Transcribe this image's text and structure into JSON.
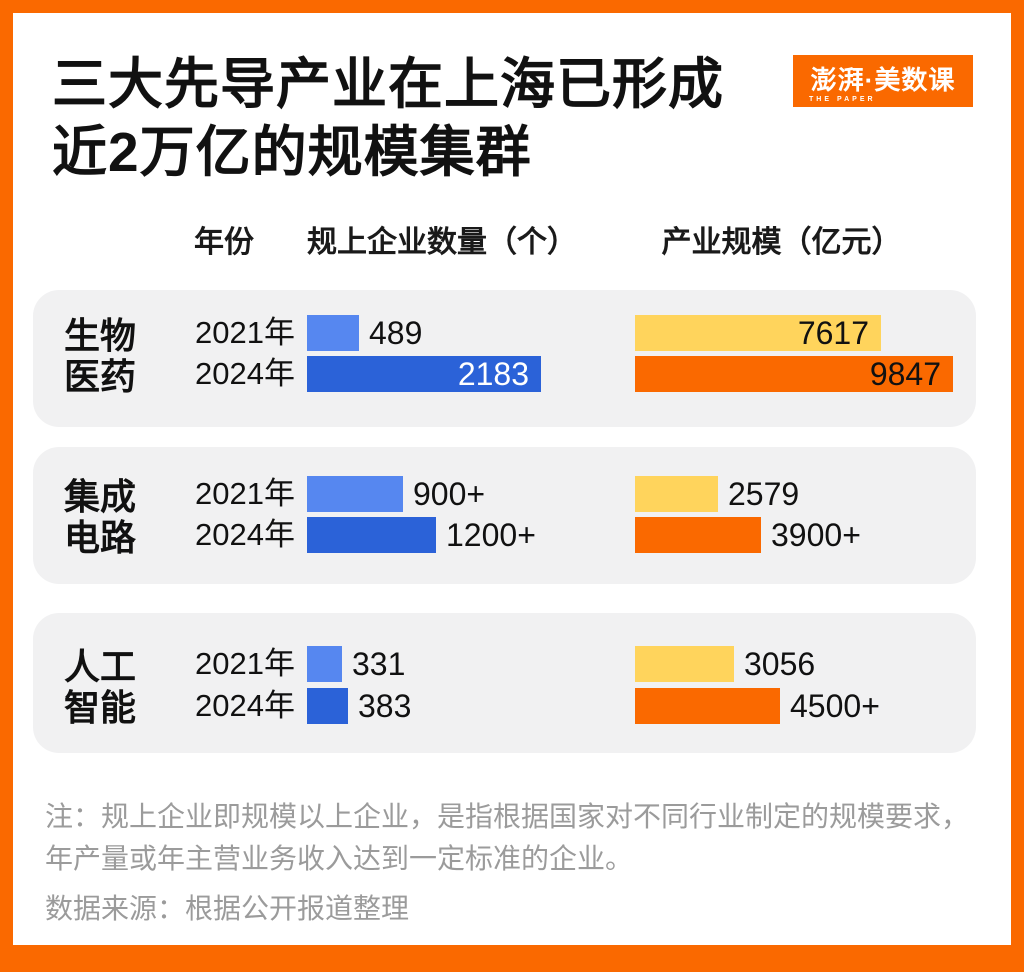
{
  "header": {
    "title_line1": "三大先导产业在上海已形成",
    "title_line2": "近2万亿的规模集群",
    "logo": {
      "text": "澎湃·美数课",
      "subtext": "THE PAPER"
    }
  },
  "colors": {
    "frame_orange": "#FA6900",
    "card_gray": "#F1F1F2",
    "companies_2021_blue": "#5687F0",
    "companies_2024_blue": "#2B62D8",
    "scale_2021_yellow": "#FFD45C",
    "scale_2024_orange": "#FA6900",
    "text_dark": "#111111",
    "inside_label_white": "#FFFFFF",
    "note_gray": "#9B9B9B"
  },
  "chart_data": {
    "type": "bar",
    "orientation": "horizontal",
    "title": "三大先导产业在上海已形成近2万亿的规模集群",
    "columns": [
      "年份",
      "规上企业数量（个）",
      "产业规模（亿元）"
    ],
    "years": [
      "2021年",
      "2024年"
    ],
    "grid": false,
    "legend": "none",
    "groups": [
      {
        "category": "生物医药",
        "category_lines": [
          "生物",
          "医药"
        ],
        "rows": [
          {
            "year": "2021年",
            "companies": {
              "label": "489",
              "value": 489,
              "inside": false
            },
            "scale": {
              "label": "7617",
              "value": 7617,
              "inside": true,
              "label_color": "#111111"
            }
          },
          {
            "year": "2024年",
            "companies": {
              "label": "2183",
              "value": 2183,
              "inside": true,
              "label_color": "#FFFFFF"
            },
            "scale": {
              "label": "9847",
              "value": 9847,
              "inside": true,
              "label_color": "#111111"
            }
          }
        ]
      },
      {
        "category": "集成电路",
        "category_lines": [
          "集成",
          "电路"
        ],
        "rows": [
          {
            "year": "2021年",
            "companies": {
              "label": "900+",
              "value": 900,
              "inside": false
            },
            "scale": {
              "label": "2579",
              "value": 2579,
              "inside": false
            }
          },
          {
            "year": "2024年",
            "companies": {
              "label": "1200+",
              "value": 1200,
              "inside": false
            },
            "scale": {
              "label": "3900+",
              "value": 3900,
              "inside": false
            }
          }
        ]
      },
      {
        "category": "人工智能",
        "category_lines": [
          "人工",
          "智能"
        ],
        "rows": [
          {
            "year": "2021年",
            "companies": {
              "label": "331",
              "value": 331,
              "inside": false
            },
            "scale": {
              "label": "3056",
              "value": 3056,
              "inside": false
            }
          },
          {
            "year": "2024年",
            "companies": {
              "label": "383",
              "value": 383,
              "inside": false
            },
            "scale": {
              "label": "4500+",
              "value": 4500,
              "inside": false
            }
          }
        ]
      }
    ]
  },
  "footer": {
    "note": "注：规上企业即规模以上企业，是指根据国家对不同行业制定的规模要求，年产量或年主营业务收入达到一定标准的企业。",
    "source": "数据来源：根据公开报道整理"
  }
}
